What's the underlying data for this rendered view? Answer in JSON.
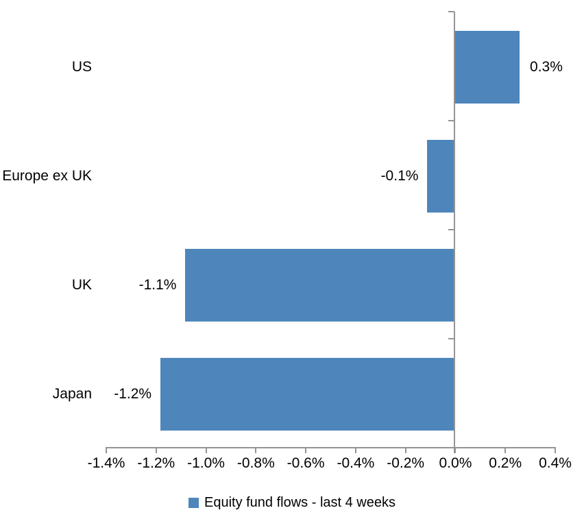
{
  "chart_data": {
    "type": "bar",
    "orientation": "horizontal",
    "title": "",
    "categories": [
      "US",
      "Europe ex UK",
      "UK",
      "Japan"
    ],
    "values": [
      0.3,
      -0.1,
      -1.1,
      -1.2
    ],
    "value_labels": [
      "0.3%",
      "-0.1%",
      "-1.1%",
      "-1.2%"
    ],
    "values_precise_pct": [
      0.26,
      -0.11,
      -1.08,
      -1.18
    ],
    "series_name": "Equity fund flows - last 4 weeks",
    "xlabel": "",
    "ylabel": "",
    "xlim": [
      -1.4,
      0.4
    ],
    "x_tick_values": [
      -1.4,
      -1.2,
      -1.0,
      -0.8,
      -0.6,
      -0.4,
      -0.2,
      0.0,
      0.2,
      0.4
    ],
    "x_tick_labels": [
      "-1.4%",
      "-1.2%",
      "-1.0%",
      "-0.8%",
      "-0.6%",
      "-0.4%",
      "-0.2%",
      "0.0%",
      "0.2%",
      "0.4%"
    ],
    "grid": false,
    "legend_position": "bottom",
    "bar_color": "#4E86BC",
    "axis_color": "#949494",
    "text_color": "#000000"
  },
  "legend": {
    "label": "Equity fund flows - last 4 weeks"
  }
}
